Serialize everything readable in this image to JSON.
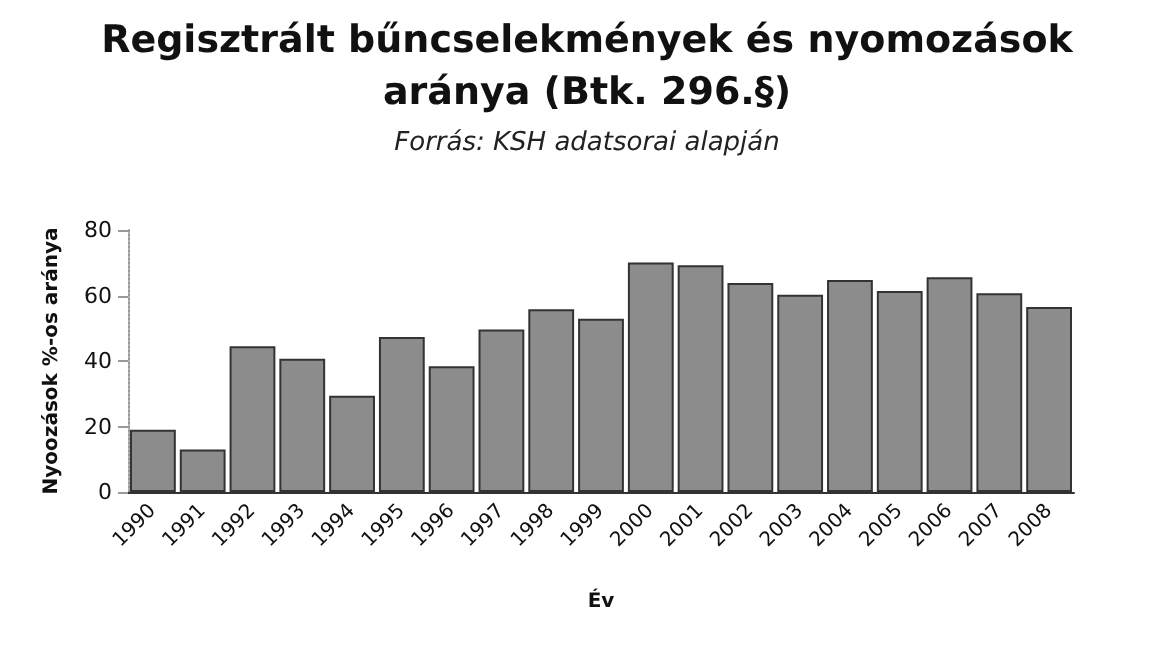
{
  "chart_data": {
    "type": "bar",
    "title": "Regisztrált bűncselekmények és nyomozások\naránya (Btk. 296.§)",
    "subtitle": "Forrás: KSH adatsorai alapján",
    "xlabel": "Év",
    "ylabel": "Nyoozások %-os aránya",
    "categories": [
      "1990",
      "1991",
      "1992",
      "1993",
      "1994",
      "1995",
      "1996",
      "1997",
      "1998",
      "1999",
      "2000",
      "2001",
      "2002",
      "2003",
      "2004",
      "2005",
      "2006",
      "2007",
      "2008"
    ],
    "values": [
      19,
      13,
      44.5,
      40.7,
      29.4,
      47.3,
      38.4,
      49.6,
      55.8,
      52.9,
      70.1,
      69.2,
      63.8,
      60.2,
      64.7,
      61.4,
      65.6,
      60.7,
      56.5
    ],
    "color": "#8c8c8c",
    "ylim": [
      0,
      80
    ],
    "yticks": [
      0,
      20,
      40,
      60,
      80
    ],
    "grid": false
  }
}
